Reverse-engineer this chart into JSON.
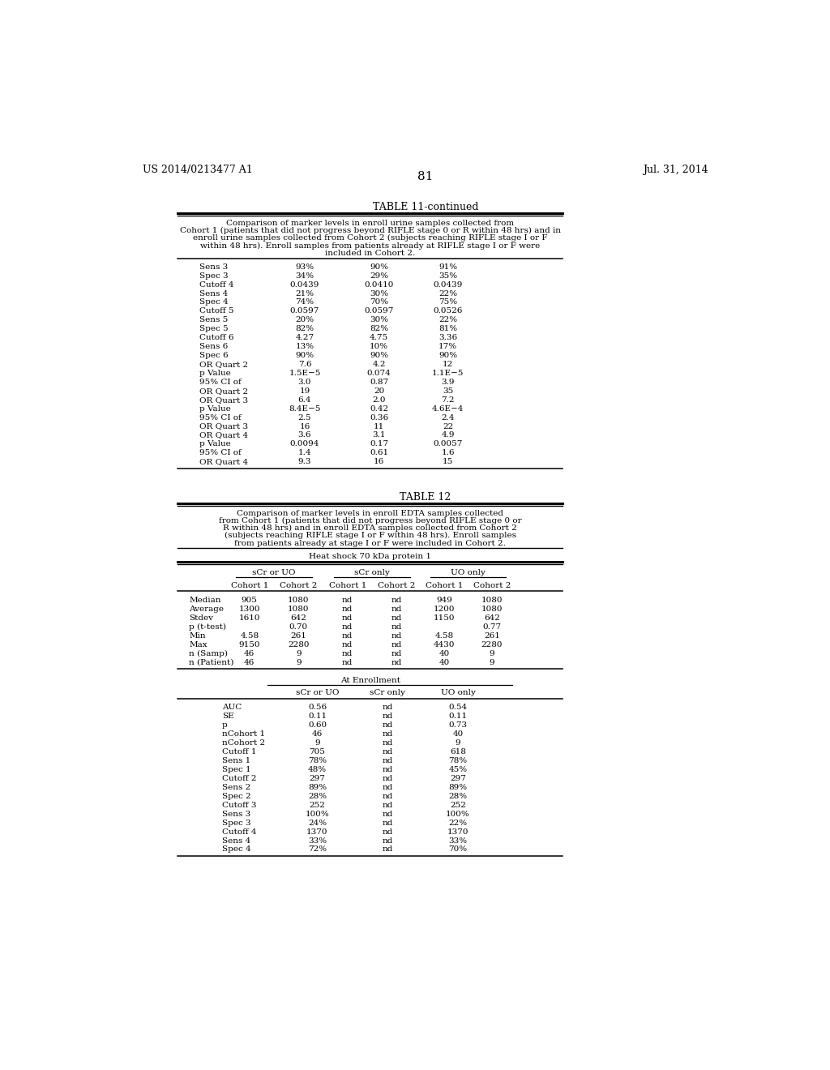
{
  "page_number": "81",
  "patent_left": "US 2014/0213477 A1",
  "patent_right": "Jul. 31, 2014",
  "background_color": "#ffffff",
  "table11_continued": {
    "title": "TABLE 11-continued",
    "caption_lines": [
      "Comparison of marker levels in enroll urine samples collected from",
      "Cohort 1 (patients that did not progress beyond RIFLE stage 0 or R within 48 hrs) and in",
      "enroll urine samples collected from Cohort 2 (subjects reaching RIFLE stage I or F",
      "within 48 hrs). Enroll samples from patients already at RIFLE stage I or F were",
      "included in Cohort 2."
    ],
    "rows": [
      [
        "Sens 3",
        "93%",
        "90%",
        "91%"
      ],
      [
        "Spec 3",
        "34%",
        "29%",
        "35%"
      ],
      [
        "Cutoff 4",
        "0.0439",
        "0.0410",
        "0.0439"
      ],
      [
        "Sens 4",
        "21%",
        "30%",
        "22%"
      ],
      [
        "Spec 4",
        "74%",
        "70%",
        "75%"
      ],
      [
        "Cutoff 5",
        "0.0597",
        "0.0597",
        "0.0526"
      ],
      [
        "Sens 5",
        "20%",
        "30%",
        "22%"
      ],
      [
        "Spec 5",
        "82%",
        "82%",
        "81%"
      ],
      [
        "Cutoff 6",
        "4.27",
        "4.75",
        "3.36"
      ],
      [
        "Sens 6",
        "13%",
        "10%",
        "17%"
      ],
      [
        "Spec 6",
        "90%",
        "90%",
        "90%"
      ],
      [
        "OR Quart 2",
        "7.6",
        "4.2",
        "12"
      ],
      [
        "p Value",
        "1.5E−5",
        "0.074",
        "1.1E−5"
      ],
      [
        "95% CI of",
        "3.0",
        "0.87",
        "3.9"
      ],
      [
        "OR Quart 2",
        "19",
        "20",
        "35"
      ],
      [
        "OR Quart 3",
        "6.4",
        "2.0",
        "7.2"
      ],
      [
        "p Value",
        "8.4E−5",
        "0.42",
        "4.6E−4"
      ],
      [
        "95% CI of",
        "2.5",
        "0.36",
        "2.4"
      ],
      [
        "OR Quart 3",
        "16",
        "11",
        "22"
      ],
      [
        "OR Quart 4",
        "3.6",
        "3.1",
        "4.9"
      ],
      [
        "p Value",
        "0.0094",
        "0.17",
        "0.0057"
      ],
      [
        "95% CI of",
        "1.4",
        "0.61",
        "1.6"
      ],
      [
        "OR Quart 4",
        "9.3",
        "16",
        "15"
      ]
    ]
  },
  "table12": {
    "title": "TABLE 12",
    "caption_lines": [
      "Comparison of marker levels in enroll EDTA samples collected",
      "from Cohort 1 (patients that did not progress beyond RIFLE stage 0 or",
      "R within 48 hrs) and in enroll EDTA samples collected from Cohort 2",
      "(subjects reaching RIFLE stage I or F within 48 hrs). Enroll samples",
      "from patients already at stage I or F were included in Cohort 2."
    ],
    "protein_label": "Heat shock 70 kDa protein 1",
    "col_groups": [
      "sCr or UO",
      "sCr only",
      "UO only"
    ],
    "col_subheaders": [
      "Cohort 1",
      "Cohort 2",
      "Cohort 1",
      "Cohort 2",
      "Cohort 1",
      "Cohort 2"
    ],
    "data_rows": [
      [
        "Median",
        "905",
        "1080",
        "nd",
        "nd",
        "949",
        "1080"
      ],
      [
        "Average",
        "1300",
        "1080",
        "nd",
        "nd",
        "1200",
        "1080"
      ],
      [
        "Stdev",
        "1610",
        "642",
        "nd",
        "nd",
        "1150",
        "642"
      ],
      [
        "p (t-test)",
        "",
        "0.70",
        "nd",
        "nd",
        "",
        "0.77"
      ],
      [
        "Min",
        "4.58",
        "261",
        "nd",
        "nd",
        "4.58",
        "261"
      ],
      [
        "Max",
        "9150",
        "2280",
        "nd",
        "nd",
        "4430",
        "2280"
      ],
      [
        "n (Samp)",
        "46",
        "9",
        "nd",
        "nd",
        "40",
        "9"
      ],
      [
        "n (Patient)",
        "46",
        "9",
        "nd",
        "nd",
        "40",
        "9"
      ]
    ],
    "enrollment_section": {
      "header": "At Enrollment",
      "col_headers": [
        "sCr or UO",
        "sCr only",
        "UO only"
      ],
      "rows": [
        [
          "AUC",
          "0.56",
          "nd",
          "0.54"
        ],
        [
          "SE",
          "0.11",
          "nd",
          "0.11"
        ],
        [
          "p",
          "0.60",
          "nd",
          "0.73"
        ],
        [
          "nCohort 1",
          "46",
          "nd",
          "40"
        ],
        [
          "nCohort 2",
          "9",
          "nd",
          "9"
        ],
        [
          "Cutoff 1",
          "705",
          "nd",
          "618"
        ],
        [
          "Sens 1",
          "78%",
          "nd",
          "78%"
        ],
        [
          "Spec 1",
          "48%",
          "nd",
          "45%"
        ],
        [
          "Cutoff 2",
          "297",
          "nd",
          "297"
        ],
        [
          "Sens 2",
          "89%",
          "nd",
          "89%"
        ],
        [
          "Spec 2",
          "28%",
          "nd",
          "28%"
        ],
        [
          "Cutoff 3",
          "252",
          "nd",
          "252"
        ],
        [
          "Sens 3",
          "100%",
          "nd",
          "100%"
        ],
        [
          "Spec 3",
          "24%",
          "nd",
          "22%"
        ],
        [
          "Cutoff 4",
          "1370",
          "nd",
          "1370"
        ],
        [
          "Sens 4",
          "33%",
          "nd",
          "33%"
        ],
        [
          "Spec 4",
          "72%",
          "nd",
          "70%"
        ]
      ]
    }
  }
}
